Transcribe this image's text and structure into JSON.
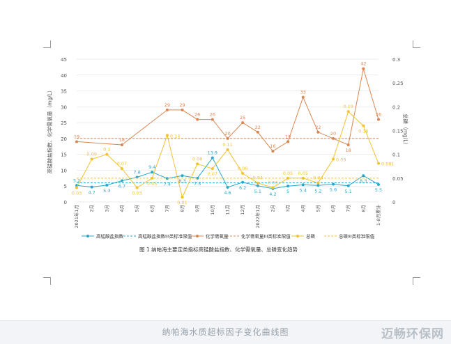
{
  "figure_caption": "图 1   纳帕海主要定类指标高锰酸盐指数、化学需氧量、总磷变化趋势",
  "footer": {
    "caption": "纳帕海水质超标因子变化曲线图",
    "watermark": "迈畅环保网"
  },
  "colors": {
    "permanganate": "#2aa7c9",
    "permanganate_limit": "#2aa7c9",
    "cod": "#d98650",
    "cod_limit": "#d98650",
    "tp": "#f2c230",
    "tp_limit": "#f2c230",
    "grid": "#e5e5e5",
    "axis_text": "#555555"
  },
  "chart_data": {
    "type": "line",
    "categories": [
      "2021年1月",
      "2月",
      "3月",
      "4月",
      "5月",
      "6月",
      "7月",
      "8月",
      "9月",
      "10月",
      "11月",
      "12月",
      "2022年1月",
      "2月",
      "3月",
      "4月",
      "5月",
      "6月",
      "7月",
      "8月",
      "1-8月累计"
    ],
    "left_axis": {
      "label": "高锰酸盐指数、化学需氧量（mg/L）",
      "min": 0,
      "max": 45,
      "ticks": [
        0,
        5,
        10,
        15,
        20,
        25,
        30,
        35,
        40,
        45
      ]
    },
    "right_axis": {
      "label": "总磷（mg/L）",
      "min": 0,
      "max": 0.3,
      "ticks": [
        "0",
        "0.05",
        "0.1",
        "0.15",
        "0.2",
        "0.25",
        "0.3"
      ]
    },
    "grid": "horizontal",
    "legend_position": "bottom",
    "series": [
      {
        "key": "permanganate",
        "name": "高锰酸盐指数",
        "axis": "left",
        "style": "solid",
        "values": [
          5.2,
          4.7,
          5.3,
          6.7,
          7.8,
          9.4,
          7.4,
          8.3,
          7.5,
          13.9,
          4.6,
          6.2,
          5.1,
          4.2,
          5,
          5.4,
          5.2,
          5.6,
          5.1,
          8.3,
          5.5
        ],
        "labels": [
          "5.2",
          "4.7",
          "5.3",
          "6.7",
          "7.8",
          "9.4",
          "7.4",
          "8.3",
          "7.5",
          "13.9",
          "4.6",
          "6.2",
          "5.1",
          "4.2",
          "5",
          "5.4",
          "5.2",
          "5.6",
          "5.1",
          "8.3",
          "5.5"
        ],
        "label_pos": [
          "up",
          "down",
          "down",
          "down",
          "up",
          "up",
          "down",
          "down",
          "down",
          "up",
          "down",
          "down",
          "down",
          "down",
          "down",
          "down",
          "down",
          "down",
          "down",
          "down",
          "down"
        ]
      },
      {
        "key": "permanganate_limit",
        "name": "高锰酸盐指数III类标准限值",
        "axis": "left",
        "style": "dashed",
        "value": 6
      },
      {
        "key": "cod",
        "name": "化学需氧量",
        "axis": "left",
        "style": "solid",
        "values": [
          19,
          null,
          null,
          18,
          null,
          null,
          29,
          29,
          26,
          26,
          20,
          25,
          22,
          16,
          19,
          33,
          22,
          20,
          18,
          42,
          26
        ],
        "labels": [
          "19",
          "",
          "",
          "18",
          "",
          "",
          "29",
          "29",
          "26",
          "26",
          "20",
          "25",
          "22",
          "16",
          "19",
          "33",
          "22",
          "20",
          "18",
          "42",
          "26"
        ],
        "label_pos": [
          "up",
          "",
          "",
          "up",
          "",
          "",
          "up",
          "up",
          "up",
          "up",
          "up",
          "up",
          "up",
          "up",
          "up",
          "up",
          "up",
          "up",
          "down",
          "up",
          "up"
        ]
      },
      {
        "key": "cod_limit",
        "name": "化学需氧量III类标准限值",
        "axis": "left",
        "style": "dashed",
        "value": 20
      },
      {
        "key": "tp",
        "name": "总磷",
        "axis": "right",
        "style": "solid",
        "values": [
          0.03,
          0.09,
          0.1,
          0.07,
          0.03,
          0.05,
          0.14,
          0.01,
          0.08,
          0.07,
          0.11,
          0.06,
          0.04,
          0.03,
          0.05,
          0.05,
          0.04,
          0.09,
          0.19,
          0.16,
          0.081
        ],
        "labels": [
          "0.03",
          "0.09",
          "0.1",
          "0.07",
          "0.03",
          "0.05",
          "0.14",
          "0.01",
          "0.08",
          "0.07",
          "0.11",
          "0.06",
          "0.04",
          "0.03",
          "0.05",
          "0.05",
          "0.04",
          "0.09",
          "0.19",
          "0.16",
          "0.081"
        ],
        "label_pos": [
          "down",
          "up",
          "up",
          "up",
          "down",
          "down",
          "right",
          "down",
          "up",
          "down",
          "up",
          "up",
          "up",
          "up",
          "up",
          "up",
          "up",
          "right",
          "up",
          "down",
          "right"
        ]
      },
      {
        "key": "tp_limit",
        "name": "总磷III类标准限值",
        "axis": "right",
        "style": "dashed",
        "value": 0.05
      }
    ]
  }
}
